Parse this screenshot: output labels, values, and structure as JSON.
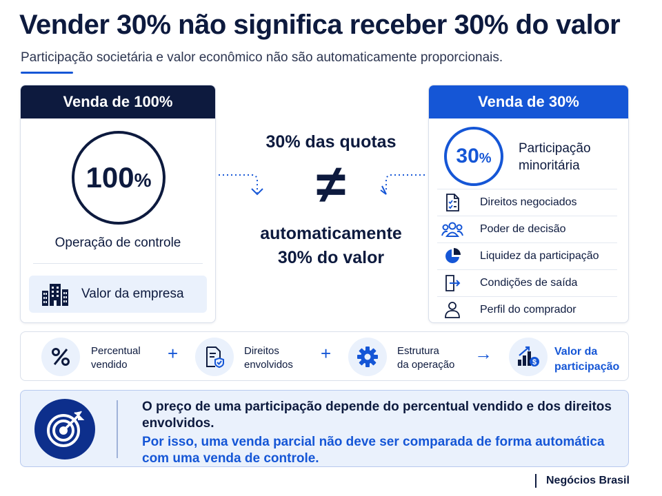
{
  "header": {
    "title": "Vender 30% não significa receber 30% do valor",
    "subtitle": "Participação societária e valor econômico não são automaticamente proporcionais."
  },
  "left_card": {
    "title": "Venda de 100%",
    "ring_number": "100",
    "ring_percent": "%",
    "caption": "Operação de controle",
    "value_box": "Valor da empresa"
  },
  "center": {
    "top": "30% das quotas",
    "symbol": "≠",
    "bottom_line1": "automaticamente",
    "bottom_line2": "30% do valor"
  },
  "right_card": {
    "title": "Venda de 30%",
    "ring_number": "30",
    "ring_percent": "%",
    "label_line1": "Participação",
    "label_line2": "minoritária",
    "items": [
      {
        "label": "Direitos negociados",
        "icon": "checklist-document-icon"
      },
      {
        "label": "Poder de decisão",
        "icon": "people-group-icon"
      },
      {
        "label": "Liquidez da participação",
        "icon": "pie-chart-icon"
      },
      {
        "label": "Condições de saída",
        "icon": "exit-door-icon"
      },
      {
        "label": "Perfil do comprador",
        "icon": "person-icon"
      }
    ]
  },
  "formula": {
    "items": [
      {
        "line1": "Percentual",
        "line2": "vendido",
        "icon": "percent-icon"
      },
      {
        "line1": "Direitos",
        "line2": "envolvidos",
        "icon": "shield-document-icon"
      },
      {
        "line1": "Estrutura",
        "line2": "da operação",
        "icon": "gear-icon"
      },
      {
        "line1": "Valor da",
        "line2": "participação",
        "icon": "money-growth-icon"
      }
    ],
    "op_plus": "+",
    "op_arrow": "→"
  },
  "message": {
    "line1": "O preço de uma participação depende do percentual vendido e dos direitos envolvidos.",
    "line2": "Por isso, uma venda parcial não deve ser comparada de forma automática com uma venda de controle.",
    "icon": "target-icon"
  },
  "brand": "Negócios Brasil",
  "colors": {
    "navy": "#0d1a3e",
    "blue": "#1556d6",
    "light_blue": "#eaf1fc"
  }
}
